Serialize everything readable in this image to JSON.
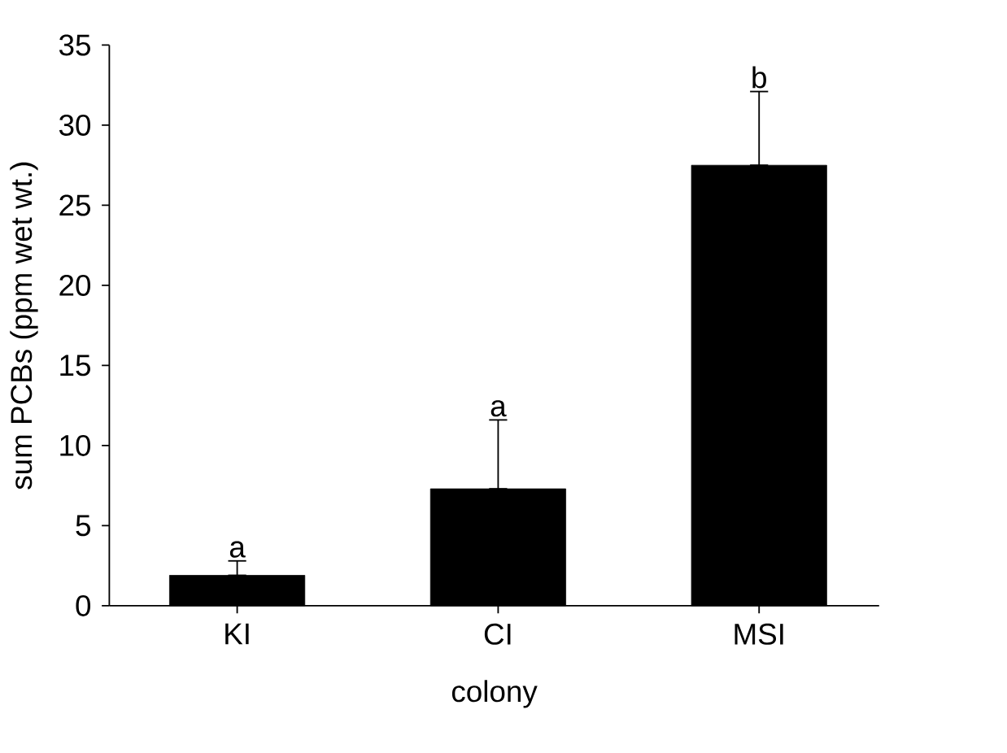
{
  "chart_data": {
    "type": "bar",
    "xlabel": "colony",
    "ylabel": "sum PCBs (ppm wet wt.)",
    "categories": [
      "KI",
      "CI",
      "MSI"
    ],
    "values": [
      1.9,
      7.3,
      27.5
    ],
    "errors": [
      [
        1.9,
        2.8
      ],
      [
        7.3,
        11.6
      ],
      [
        27.5,
        32.1
      ]
    ],
    "color": "#000000",
    "ylim": [
      0,
      35
    ],
    "yticks": [
      0,
      5,
      10,
      15,
      20,
      25,
      30,
      35
    ],
    "grid": false,
    "annotations": [
      {
        "text": "a",
        "x": "KI",
        "y": 2.8
      },
      {
        "text": "a",
        "x": "CI",
        "y": 11.6
      },
      {
        "text": "b",
        "x": "MSI",
        "y": 32.1
      }
    ]
  }
}
